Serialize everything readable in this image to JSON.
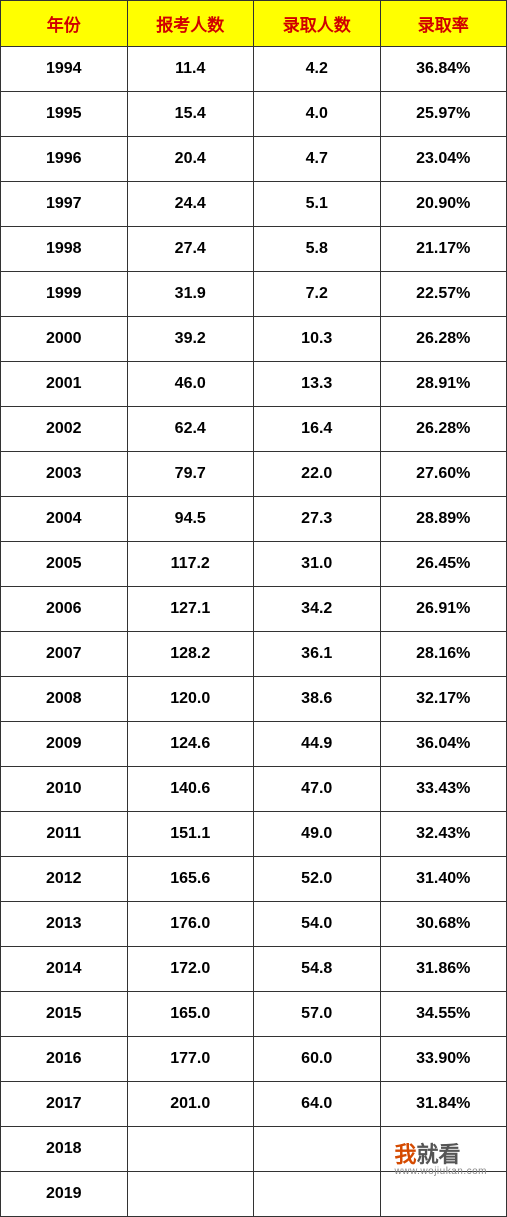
{
  "table": {
    "header_bg": "#ffff00",
    "header_color": "#d00000",
    "border_color": "#333333",
    "cell_font_size": 16,
    "header_font_size": 17,
    "columns": [
      "年份",
      "报考人数",
      "录取人数",
      "录取率"
    ],
    "rows": [
      [
        "1994",
        "11.4",
        "4.2",
        "36.84%"
      ],
      [
        "1995",
        "15.4",
        "4.0",
        "25.97%"
      ],
      [
        "1996",
        "20.4",
        "4.7",
        "23.04%"
      ],
      [
        "1997",
        "24.4",
        "5.1",
        "20.90%"
      ],
      [
        "1998",
        "27.4",
        "5.8",
        "21.17%"
      ],
      [
        "1999",
        "31.9",
        "7.2",
        "22.57%"
      ],
      [
        "2000",
        "39.2",
        "10.3",
        "26.28%"
      ],
      [
        "2001",
        "46.0",
        "13.3",
        "28.91%"
      ],
      [
        "2002",
        "62.4",
        "16.4",
        "26.28%"
      ],
      [
        "2003",
        "79.7",
        "22.0",
        "27.60%"
      ],
      [
        "2004",
        "94.5",
        "27.3",
        "28.89%"
      ],
      [
        "2005",
        "117.2",
        "31.0",
        "26.45%"
      ],
      [
        "2006",
        "127.1",
        "34.2",
        "26.91%"
      ],
      [
        "2007",
        "128.2",
        "36.1",
        "28.16%"
      ],
      [
        "2008",
        "120.0",
        "38.6",
        "32.17%"
      ],
      [
        "2009",
        "124.6",
        "44.9",
        "36.04%"
      ],
      [
        "2010",
        "140.6",
        "47.0",
        "33.43%"
      ],
      [
        "2011",
        "151.1",
        "49.0",
        "32.43%"
      ],
      [
        "2012",
        "165.6",
        "52.0",
        "31.40%"
      ],
      [
        "2013",
        "176.0",
        "54.0",
        "30.68%"
      ],
      [
        "2014",
        "172.0",
        "54.8",
        "31.86%"
      ],
      [
        "2015",
        "165.0",
        "57.0",
        "34.55%"
      ],
      [
        "2016",
        "177.0",
        "60.0",
        "33.90%"
      ],
      [
        "2017",
        "201.0",
        "64.0",
        "31.84%"
      ],
      [
        "2018",
        "",
        "",
        ""
      ],
      [
        "2019",
        "",
        "",
        ""
      ]
    ]
  },
  "watermark": {
    "wo": "我",
    "rest": "就看",
    "url": "www.wojiukan.com"
  }
}
